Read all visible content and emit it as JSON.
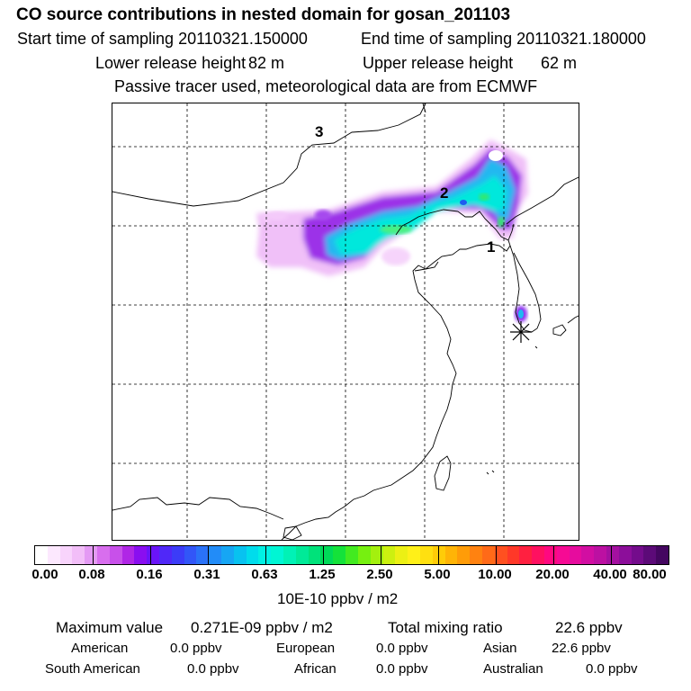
{
  "header": {
    "title": "CO  source contributions in nested domain for gosan_201103",
    "start_label": "Start time of sampling 20110321.150000",
    "end_label": "End time of sampling 20110321.180000",
    "lower_label": "Lower release height",
    "lower_value": "82 m",
    "upper_label": "Upper release height",
    "upper_value": "62 m",
    "note": "Passive tracer used, meteorological data are from ECMWF"
  },
  "map": {
    "zones": [
      "3",
      "2",
      "1"
    ],
    "receptor_marker": "asterisk-icon"
  },
  "colorbar": {
    "ticks": [
      "0.00",
      "0.08",
      "0.16",
      "0.31",
      "0.63",
      "1.25",
      "2.50",
      "5.00",
      "10.00",
      "20.00",
      "40.00",
      "80.00"
    ],
    "colors": [
      "#ffffff",
      "#fce8fe",
      "#f8d4fc",
      "#f2bef8",
      "#e49af4",
      "#d86eee",
      "#c850ea",
      "#b026e6",
      "#8a0ef0",
      "#6a14f8",
      "#5028f8",
      "#3c3cf8",
      "#3256f8",
      "#2a72f8",
      "#228cf8",
      "#16a6f4",
      "#08c2f0",
      "#00dcec",
      "#00f0e4",
      "#00f6d4",
      "#00f2b6",
      "#00ea98",
      "#00e27a",
      "#00da58",
      "#14e23a",
      "#42ea20",
      "#76f010",
      "#a4f00e",
      "#ccf010",
      "#ecf014",
      "#fff018",
      "#ffe010",
      "#ffcc08",
      "#ffb406",
      "#ff9c08",
      "#ff8210",
      "#ff6a18",
      "#ff5020",
      "#ff3828",
      "#ff2040",
      "#ff1060",
      "#ff0880",
      "#f60a94",
      "#e60c9e",
      "#d20ea2",
      "#bc10a2",
      "#a410a0",
      "#8c0e9a",
      "#740c8c",
      "#5c0a78",
      "#440660"
    ],
    "units": "10E-10 ppbv / m2"
  },
  "stats": {
    "max_label": "Maximum value",
    "max_value": "0.271E-09 ppbv / m2",
    "total_label": "Total mixing ratio",
    "total_value": "22.6 ppbv",
    "regions": [
      {
        "name": "American",
        "value": "0.0 ppbv"
      },
      {
        "name": "European",
        "value": "0.0 ppbv"
      },
      {
        "name": "Asian",
        "value": "22.6 ppbv"
      },
      {
        "name": "South American",
        "value": "0.0 ppbv"
      },
      {
        "name": "African",
        "value": "0.0 ppbv"
      },
      {
        "name": "Australian",
        "value": "0.0 ppbv"
      }
    ]
  }
}
